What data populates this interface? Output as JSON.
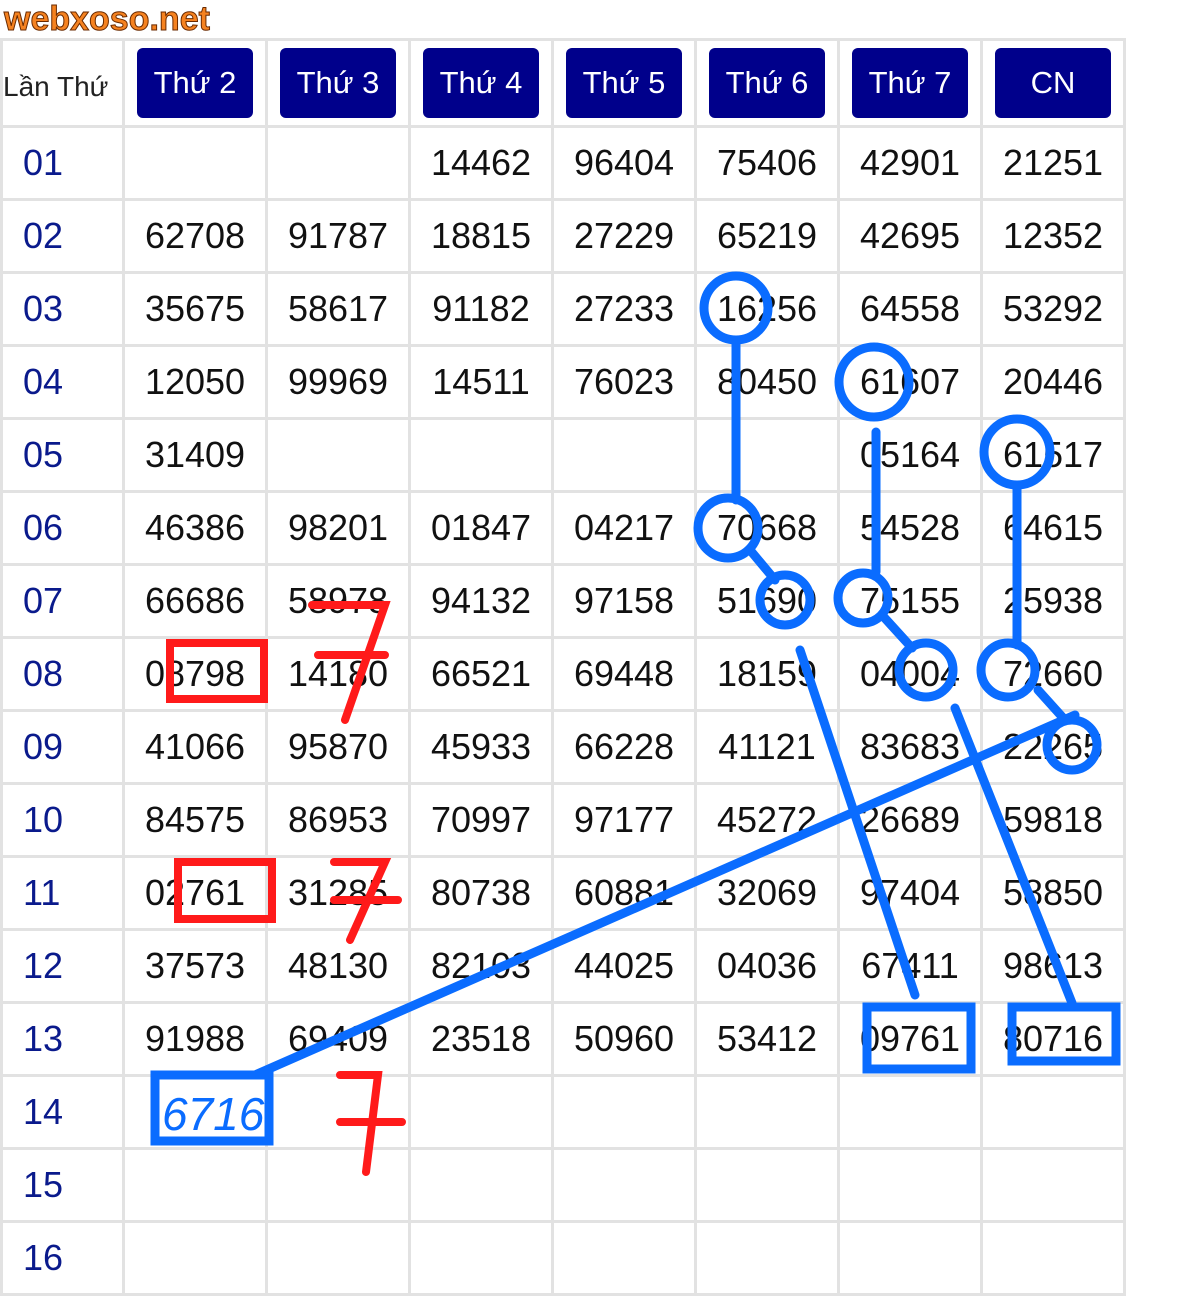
{
  "watermark": "webxoso.net",
  "corner_label": "Lần Thứ",
  "headers": [
    "Thứ 2",
    "Thứ 3",
    "Thứ 4",
    "Thứ 5",
    "Thứ 6",
    "Thứ 7",
    "CN"
  ],
  "rows": [
    {
      "label": "01",
      "cells": [
        "",
        "",
        "14462",
        "96404",
        "75406",
        "42901",
        "21251"
      ]
    },
    {
      "label": "02",
      "cells": [
        "62708",
        "91787",
        "18815",
        "27229",
        "65219",
        "42695",
        "12352"
      ]
    },
    {
      "label": "03",
      "cells": [
        "35675",
        "58617",
        "91182",
        "27233",
        "16256",
        "64558",
        "53292"
      ]
    },
    {
      "label": "04",
      "cells": [
        "12050",
        "99969",
        "14511",
        "76023",
        "80450",
        "61607",
        "20446"
      ]
    },
    {
      "label": "05",
      "cells": [
        "31409",
        "",
        "",
        "",
        "",
        "05164",
        "61517"
      ]
    },
    {
      "label": "06",
      "cells": [
        "46386",
        "98201",
        "01847",
        "04217",
        "70668",
        "54528",
        "64615"
      ]
    },
    {
      "label": "07",
      "cells": [
        "66686",
        "58978",
        "94132",
        "97158",
        "51690",
        "75155",
        "25938"
      ]
    },
    {
      "label": "08",
      "cells": [
        "08798",
        "14180",
        "66521",
        "69448",
        "18159",
        "04004",
        "72660"
      ]
    },
    {
      "label": "09",
      "cells": [
        "41066",
        "95870",
        "45933",
        "66228",
        "41121",
        "83683",
        "22265"
      ]
    },
    {
      "label": "10",
      "cells": [
        "84575",
        "86953",
        "70997",
        "97177",
        "45272",
        "26689",
        "59818"
      ]
    },
    {
      "label": "11",
      "cells": [
        "02761",
        "31285",
        "80738",
        "60881",
        "32069",
        "97404",
        "58850"
      ]
    },
    {
      "label": "12",
      "cells": [
        "37573",
        "48130",
        "82103",
        "44025",
        "04036",
        "67411",
        "98613"
      ]
    },
    {
      "label": "13",
      "cells": [
        "91988",
        "69409",
        "23518",
        "50960",
        "53412",
        "09761",
        "80716"
      ]
    },
    {
      "label": "14",
      "cells": [
        "",
        "",
        "",
        "",
        "",
        "",
        ""
      ]
    },
    {
      "label": "15",
      "cells": [
        "",
        "",
        "",
        "",
        "",
        "",
        ""
      ]
    },
    {
      "label": "16",
      "cells": [
        "",
        "",
        "",
        "",
        "",
        "",
        ""
      ]
    }
  ],
  "annotations": {
    "handwritten_prediction": "6716",
    "red_mark": "7",
    "blue": "#0a6cff",
    "red": "#ff1a1a"
  }
}
